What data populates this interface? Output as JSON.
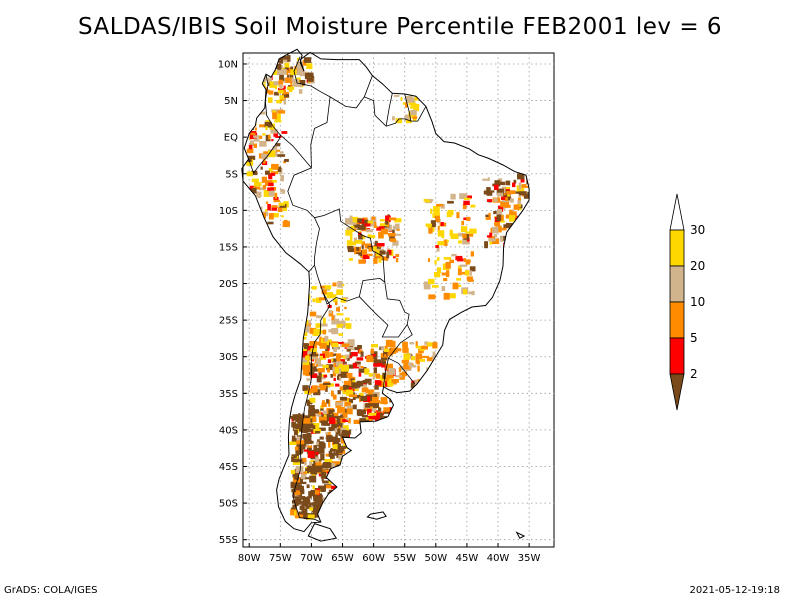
{
  "title": "SALDAS/IBIS Soil Moisture Percentile FEB2001 lev = 6",
  "axes": {
    "lat_labels": [
      "10N",
      "5N",
      "EQ",
      "5S",
      "10S",
      "15S",
      "20S",
      "25S",
      "30S",
      "35S",
      "40S",
      "45S",
      "50S",
      "55S"
    ],
    "lon_labels": [
      "80W",
      "75W",
      "70W",
      "65W",
      "60W",
      "55W",
      "50W",
      "45W",
      "40W",
      "35W"
    ],
    "lat_range": [
      11.5,
      -56
    ],
    "lon_range": [
      -81,
      -31
    ],
    "lat_ticks": [
      10,
      5,
      0,
      -5,
      -10,
      -15,
      -20,
      -25,
      -30,
      -35,
      -40,
      -45,
      -50,
      -55
    ],
    "lon_ticks": [
      -80,
      -75,
      -70,
      -65,
      -60,
      -55,
      -50,
      -45,
      -40,
      -35
    ]
  },
  "legend": {
    "levels": [
      "30",
      "20",
      "10",
      "5",
      "2"
    ],
    "colors": {
      "below_2": "#7a4a1a",
      "2_5": "#ff0000",
      "5_10": "#ff8c00",
      "10_20": "#d2b48c",
      "20_30": "#ffd700",
      "above_30": "#ffffff"
    }
  },
  "footer": {
    "left": "GrADS: COLA/IGES",
    "right": "2021-05-12-19:18"
  }
}
